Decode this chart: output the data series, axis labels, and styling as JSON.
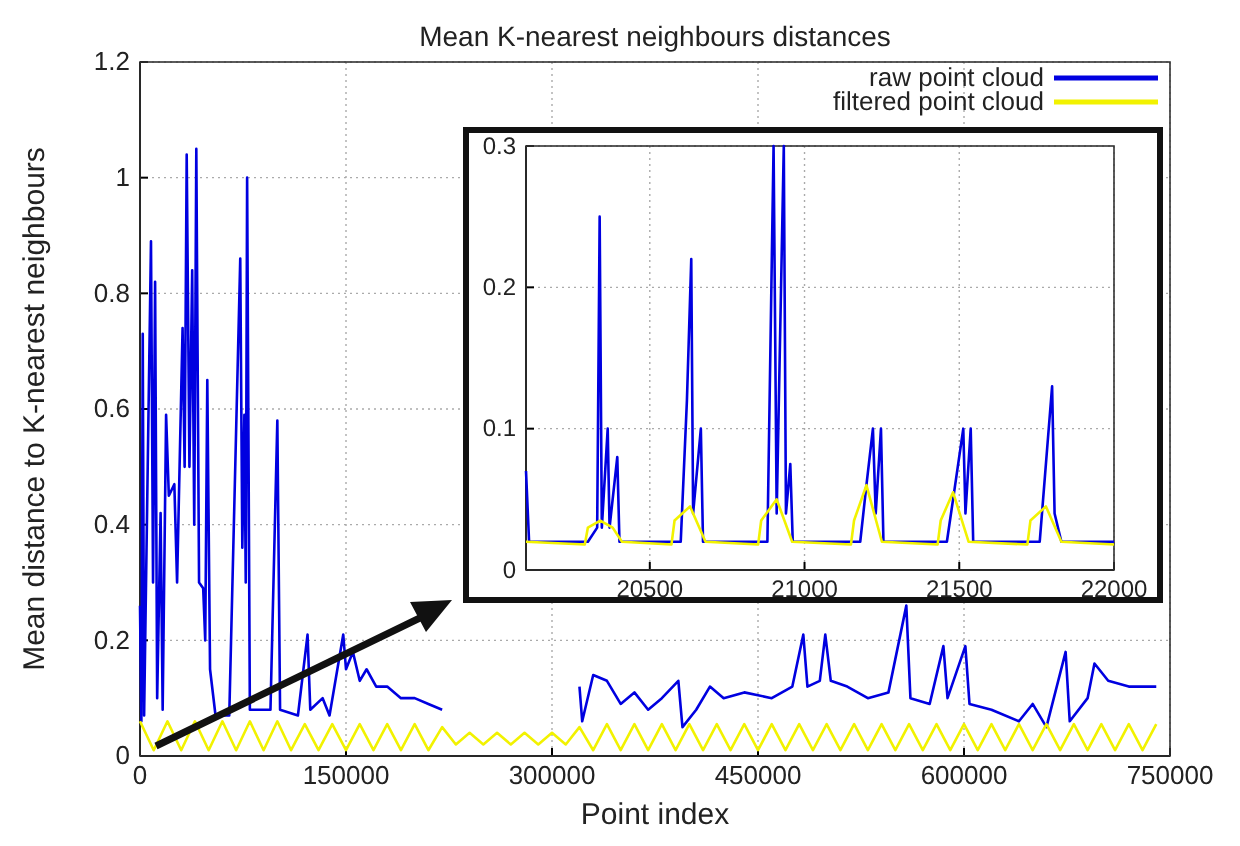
{
  "chart_data": [
    {
      "type": "line",
      "title": "Mean K-nearest neighbours distances",
      "xlabel": "Point index",
      "ylabel": "Mean distance to K-nearest neighbours",
      "xlim": [
        0,
        750000
      ],
      "ylim": [
        0,
        1.2
      ],
      "xticks": [
        0,
        150000,
        300000,
        450000,
        600000,
        750000
      ],
      "yticks": [
        0,
        0.2,
        0.4,
        0.6,
        0.8,
        1,
        1.2
      ],
      "grid": true,
      "legend": "top right",
      "series": [
        {
          "name": "raw point cloud",
          "color": "#0000e0",
          "x": [
            0,
            1000,
            2000,
            3000,
            8000,
            9500,
            11000,
            12500,
            15000,
            16500,
            19000,
            21000,
            25000,
            27000,
            31000,
            32500,
            34000,
            36000,
            38000,
            39500,
            41000,
            43000,
            46000,
            47500,
            49000,
            51000,
            55000,
            65000,
            73000,
            74500,
            76000,
            77000,
            78000,
            80000,
            95000,
            100000,
            102000,
            115000,
            122000,
            124000,
            133000,
            138000,
            148000,
            150000,
            155000,
            160000,
            165000,
            172000,
            180000,
            190000,
            200000,
            210000,
            220000,
            225000,
            315000,
            320000,
            322000,
            330000,
            340000,
            350000,
            360000,
            370000,
            380000,
            392000,
            395000,
            405000,
            415000,
            425000,
            440000,
            460000,
            475000,
            483000,
            486000,
            495000,
            499000,
            503000,
            515000,
            530000,
            545000,
            558000,
            561000,
            575000,
            585000,
            588000,
            601000,
            604000,
            620000,
            640000,
            650000,
            660000,
            674000,
            677000,
            690000,
            695000,
            705000,
            720000,
            740000
          ],
          "values": [
            0.26,
            0.06,
            0.73,
            0.07,
            0.89,
            0.3,
            0.82,
            0.1,
            0.42,
            0.08,
            0.59,
            0.45,
            0.47,
            0.3,
            0.74,
            0.5,
            1.04,
            0.5,
            0.84,
            0.4,
            1.05,
            0.3,
            0.29,
            0.2,
            0.65,
            0.15,
            0.07,
            0.07,
            0.86,
            0.36,
            0.59,
            0.3,
            1.0,
            0.08,
            0.08,
            0.58,
            0.08,
            0.07,
            0.21,
            0.08,
            0.1,
            0.07,
            0.21,
            0.15,
            0.18,
            0.13,
            0.15,
            0.12,
            0.12,
            0.1,
            0.1,
            0.09,
            0.08,
            null,
            null,
            0.12,
            0.06,
            0.14,
            0.13,
            0.09,
            0.11,
            0.08,
            0.1,
            0.13,
            0.05,
            0.08,
            0.12,
            0.1,
            0.11,
            0.1,
            0.12,
            0.21,
            0.12,
            0.13,
            0.21,
            0.13,
            0.12,
            0.1,
            0.11,
            0.26,
            0.1,
            0.09,
            0.19,
            0.1,
            0.19,
            0.09,
            0.08,
            0.06,
            0.09,
            0.05,
            0.18,
            0.06,
            0.1,
            0.16,
            0.13,
            0.12,
            0.12
          ]
        },
        {
          "name": "filtered point cloud",
          "color": "#f2f200",
          "x": [
            0,
            10000,
            20000,
            30000,
            40000,
            50000,
            60000,
            70000,
            80000,
            90000,
            100000,
            110000,
            120000,
            130000,
            140000,
            150000,
            160000,
            170000,
            180000,
            190000,
            200000,
            210000,
            220000,
            230000,
            240000,
            250000,
            260000,
            270000,
            280000,
            290000,
            300000,
            310000,
            320000,
            330000,
            340000,
            350000,
            360000,
            370000,
            380000,
            390000,
            400000,
            410000,
            420000,
            430000,
            440000,
            450000,
            460000,
            470000,
            480000,
            490000,
            500000,
            510000,
            520000,
            530000,
            540000,
            550000,
            560000,
            570000,
            580000,
            590000,
            600000,
            610000,
            620000,
            630000,
            640000,
            650000,
            660000,
            670000,
            680000,
            690000,
            700000,
            710000,
            720000,
            730000,
            740000
          ],
          "values": [
            0.06,
            0.01,
            0.06,
            0.01,
            0.06,
            0.01,
            0.06,
            0.01,
            0.06,
            0.01,
            0.06,
            0.01,
            0.055,
            0.01,
            0.055,
            0.01,
            0.055,
            0.01,
            0.055,
            0.01,
            0.055,
            0.01,
            0.05,
            0.02,
            0.04,
            0.02,
            0.04,
            0.02,
            0.04,
            0.02,
            0.04,
            0.02,
            0.05,
            0.01,
            0.055,
            0.01,
            0.055,
            0.01,
            0.055,
            0.01,
            0.055,
            0.01,
            0.055,
            0.01,
            0.055,
            0.01,
            0.055,
            0.01,
            0.055,
            0.01,
            0.055,
            0.01,
            0.055,
            0.01,
            0.055,
            0.01,
            0.055,
            0.01,
            0.055,
            0.01,
            0.055,
            0.01,
            0.055,
            0.01,
            0.055,
            0.01,
            0.055,
            0.01,
            0.055,
            0.01,
            0.055,
            0.01,
            0.055,
            0.01,
            0.055
          ]
        }
      ]
    },
    {
      "type": "line",
      "xlim": [
        20100,
        22000
      ],
      "ylim": [
        0,
        0.3
      ],
      "xticks": [
        20500,
        21000,
        21500,
        22000
      ],
      "yticks": [
        0,
        0.1,
        0.2,
        0.3
      ],
      "grid": true,
      "series": [
        {
          "color": "#0000e0",
          "x": [
            20100,
            20110,
            20300,
            20330,
            20338,
            20345,
            20364,
            20370,
            20395,
            20402,
            20600,
            20620,
            20634,
            20640,
            20665,
            20672,
            20880,
            20900,
            20910,
            20933,
            20940,
            20954,
            20962,
            21180,
            21200,
            21221,
            21230,
            21247,
            21255,
            21460,
            21480,
            21513,
            21520,
            21537,
            21545,
            21760,
            21800,
            21808,
            21830,
            22000
          ],
          "values": [
            0.07,
            0.02,
            0.02,
            0.03,
            0.25,
            0.03,
            0.1,
            0.03,
            0.08,
            0.02,
            0.02,
            0.12,
            0.22,
            0.04,
            0.1,
            0.02,
            0.02,
            0.3,
            0.04,
            0.3,
            0.04,
            0.075,
            0.02,
            0.02,
            0.06,
            0.1,
            0.04,
            0.1,
            0.02,
            0.02,
            0.05,
            0.1,
            0.04,
            0.1,
            0.02,
            0.02,
            0.13,
            0.04,
            0.02,
            0.02
          ]
        },
        {
          "color": "#f2f200",
          "x": [
            20100,
            20290,
            20300,
            20340,
            20380,
            20410,
            20570,
            20580,
            20630,
            20680,
            20850,
            20860,
            20910,
            20960,
            21150,
            21160,
            21200,
            21250,
            21430,
            21440,
            21480,
            21530,
            21720,
            21730,
            21780,
            21830,
            22000
          ],
          "values": [
            0.02,
            0.018,
            0.03,
            0.035,
            0.03,
            0.02,
            0.018,
            0.035,
            0.045,
            0.02,
            0.018,
            0.035,
            0.05,
            0.02,
            0.018,
            0.035,
            0.06,
            0.02,
            0.018,
            0.035,
            0.055,
            0.02,
            0.018,
            0.035,
            0.045,
            0.02,
            0.018
          ]
        }
      ]
    }
  ]
}
